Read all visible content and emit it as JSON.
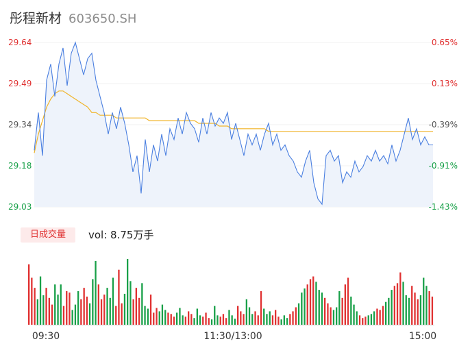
{
  "stock": {
    "name": "彤程新材",
    "code": "603650.SH"
  },
  "badge": "日成交量",
  "volume_label": "vol: 8.75万手",
  "colors": {
    "up": "#e03131",
    "down": "#18a048",
    "price_line": "#4a7fe0",
    "avg_line": "#f0b429",
    "area": "#eef3fb"
  },
  "chart_data": [
    {
      "type": "line",
      "ylim": [
        29.03,
        29.64
      ],
      "y_ticks_left": [
        "29.64",
        "29.49",
        "29.34",
        "29.18",
        "29.03"
      ],
      "y_ticks_right": [
        "0.65%",
        "0.13%",
        "-0.39%",
        "-0.91%",
        "-1.43%"
      ],
      "series": [
        {
          "values": [
            29.24,
            29.38,
            29.22,
            29.5,
            29.56,
            29.44,
            29.56,
            29.62,
            29.48,
            29.6,
            29.64,
            29.58,
            29.52,
            29.58,
            29.6,
            29.5,
            29.44,
            29.38,
            29.3,
            29.38,
            29.32,
            29.4,
            29.34,
            29.26,
            29.16,
            29.22,
            29.08,
            29.28,
            29.16,
            29.26,
            29.2,
            29.3,
            29.22,
            29.32,
            29.28,
            29.36,
            29.3,
            29.38,
            29.34,
            29.32,
            29.27,
            29.36,
            29.3,
            29.38,
            29.33,
            29.36,
            29.34,
            29.38,
            29.28,
            29.34,
            29.28,
            29.22,
            29.3,
            29.26,
            29.3,
            29.24,
            29.3,
            29.34,
            29.26,
            29.3,
            29.24,
            29.26,
            29.22,
            29.2,
            29.16,
            29.14,
            29.2,
            29.24,
            29.12,
            29.06,
            29.04,
            29.22,
            29.24,
            29.2,
            29.22,
            29.12,
            29.16,
            29.14,
            29.2,
            29.16,
            29.18,
            29.22,
            29.2,
            29.24,
            29.2,
            29.22,
            29.19,
            29.26,
            29.2,
            29.24,
            29.3,
            29.36,
            29.28,
            29.32,
            29.26,
            29.29,
            29.26,
            29.26
          ]
        },
        {
          "values": [
            29.23,
            29.3,
            29.35,
            29.4,
            29.43,
            29.45,
            29.46,
            29.46,
            29.45,
            29.44,
            29.43,
            29.42,
            29.41,
            29.4,
            29.38,
            29.38,
            29.37,
            29.37,
            29.37,
            29.37,
            29.36,
            29.36,
            29.36,
            29.36,
            29.36,
            29.36,
            29.36,
            29.36,
            29.35,
            29.35,
            29.35,
            29.35,
            29.35,
            29.35,
            29.35,
            29.35,
            29.35,
            29.35,
            29.35,
            29.35,
            29.34,
            29.34,
            29.34,
            29.34,
            29.34,
            29.33,
            29.33,
            29.33,
            29.32,
            29.32,
            29.32,
            29.32,
            29.32,
            29.32,
            29.32,
            29.32,
            29.32,
            29.31,
            29.31,
            29.31,
            29.31,
            29.31,
            29.31,
            29.31,
            29.31,
            29.31,
            29.31,
            29.31,
            29.31,
            29.31,
            29.31,
            29.31,
            29.31,
            29.31,
            29.31,
            29.31,
            29.31,
            29.31,
            29.31,
            29.31,
            29.31,
            29.31,
            29.31,
            29.31,
            29.31,
            29.31,
            29.31,
            29.31,
            29.31,
            29.31,
            29.31,
            29.31,
            29.31,
            29.31,
            29.31,
            29.31,
            29.31,
            29.31
          ]
        }
      ]
    },
    {
      "type": "bar",
      "x_ticks": [
        "09:30",
        "11:30/13:00",
        "15:00"
      ],
      "values": [
        90,
        70,
        55,
        38,
        72,
        44,
        55,
        40,
        30,
        60,
        45,
        60,
        28,
        50,
        48,
        22,
        30,
        50,
        38,
        55,
        42,
        32,
        68,
        95,
        60,
        38,
        45,
        55,
        40,
        70,
        28,
        82,
        32,
        46,
        98,
        65,
        38,
        55,
        40,
        62,
        28,
        24,
        45,
        18,
        25,
        20,
        30,
        22,
        18,
        16,
        12,
        18,
        25,
        14,
        12,
        20,
        16,
        10,
        24,
        14,
        12,
        18,
        10,
        8,
        28,
        14,
        12,
        16,
        10,
        22,
        14,
        9,
        28,
        20,
        16,
        38,
        26,
        16,
        20,
        14,
        50,
        24,
        16,
        20,
        14,
        22,
        12,
        8,
        14,
        10,
        16,
        20,
        26,
        32,
        48,
        54,
        60,
        68,
        72,
        64,
        52,
        48,
        40,
        32,
        26,
        22,
        26,
        50,
        40,
        60,
        70,
        42,
        30,
        20,
        14,
        10,
        12,
        14,
        16,
        20,
        24,
        22,
        28,
        34,
        40,
        52,
        58,
        62,
        78,
        64,
        44,
        40,
        58,
        48,
        38,
        44,
        70,
        58,
        50,
        42
      ],
      "colors_seq": "rgrgrgrgrgrg"
    }
  ]
}
